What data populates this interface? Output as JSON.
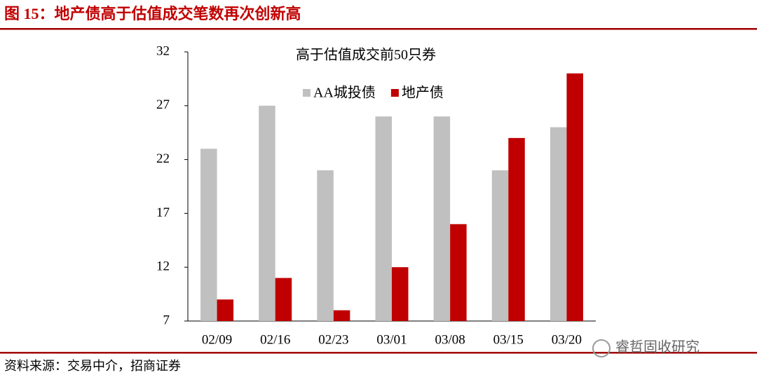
{
  "header": {
    "title": "图 15：地产债高于估值成交笔数再次创新高"
  },
  "chart_data": {
    "type": "bar",
    "title": "高于估值成交前50只券",
    "categories": [
      "02/09",
      "02/16",
      "02/23",
      "03/01",
      "03/08",
      "03/15",
      "03/20"
    ],
    "series": [
      {
        "name": "AA城投债",
        "color": "#c0c0c0",
        "values": [
          23,
          27,
          21,
          26,
          26,
          21,
          25
        ]
      },
      {
        "name": "地产债",
        "color": "#c00000",
        "values": [
          9,
          11,
          8,
          12,
          16,
          24,
          30
        ]
      }
    ],
    "ylim": [
      7,
      32
    ],
    "yticks": [
      7,
      12,
      17,
      22,
      27,
      32
    ],
    "grid": false,
    "legend": "top"
  },
  "source": "资料来源：交易中介，招商证券",
  "watermark": "睿哲固收研究"
}
